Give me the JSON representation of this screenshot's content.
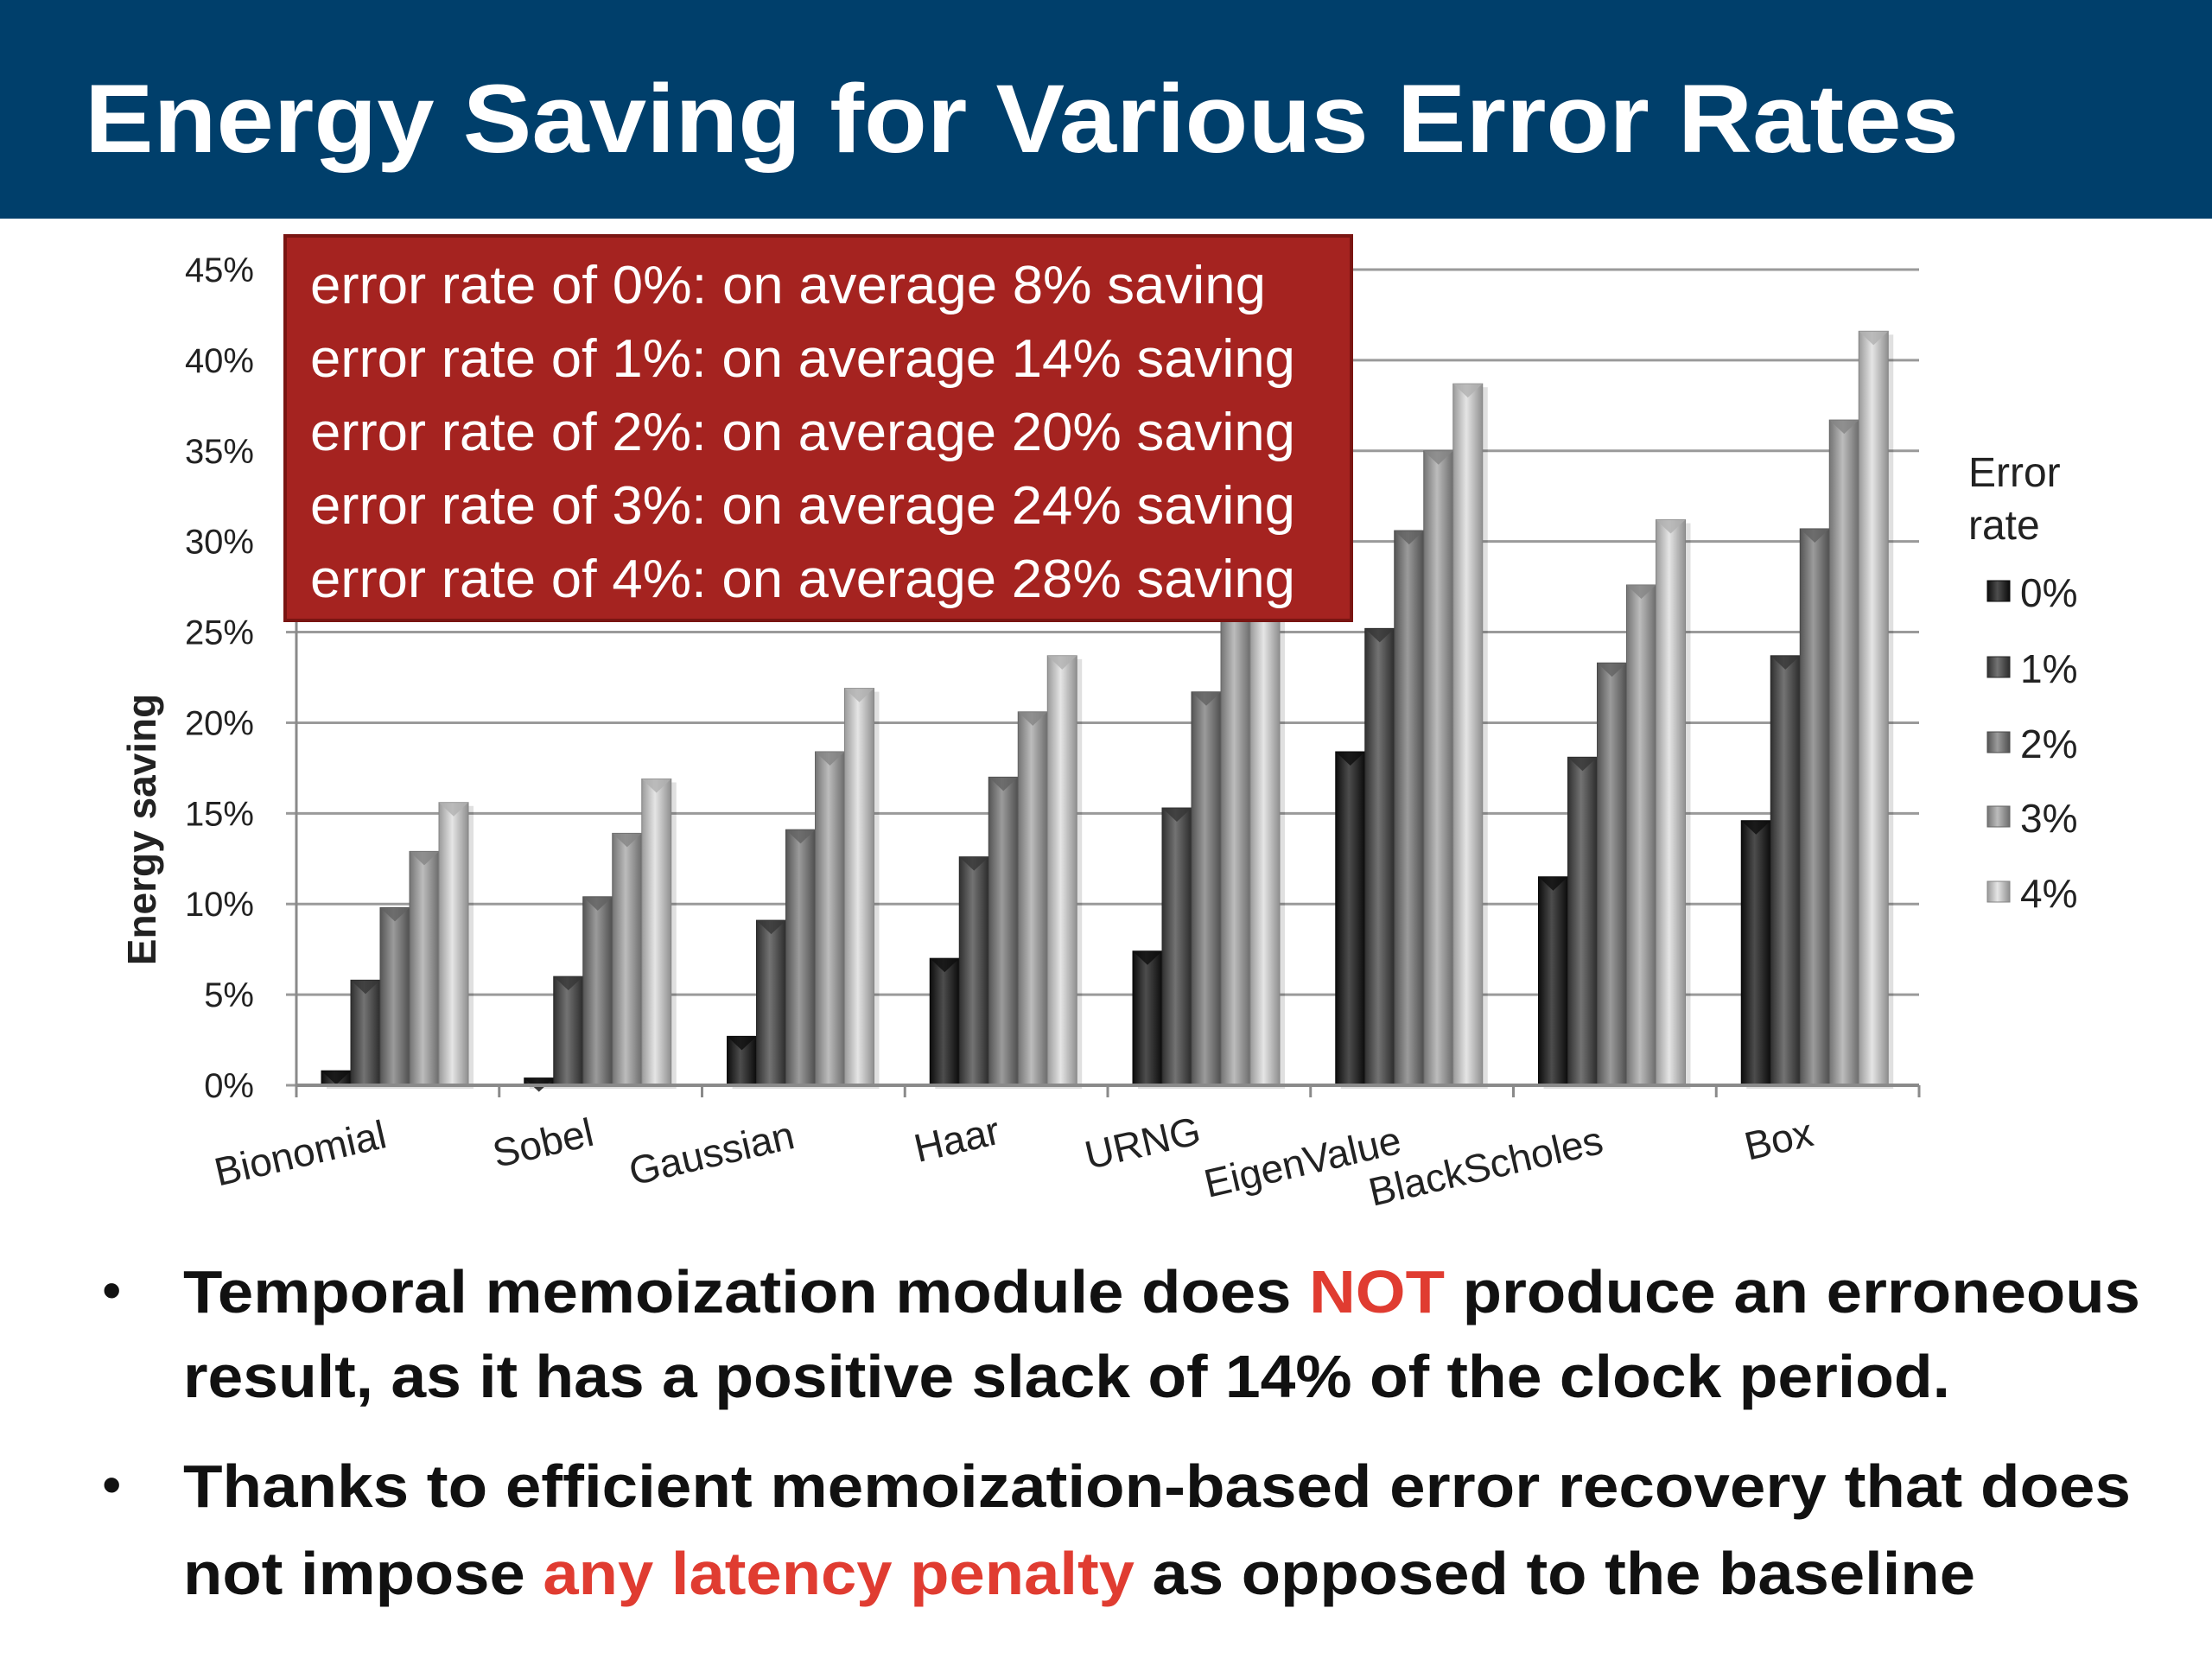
{
  "slide": {
    "title": "Energy Saving for Various Error Rates",
    "header_color": "#003f6b",
    "callout": {
      "background": "#a52320",
      "lines": [
        "error rate of 0%: on average 8% saving",
        "error rate of 1%: on average 14% saving",
        "error rate of 2%: on average 20% saving",
        "error rate of 3%: on average 24% saving",
        "error rate of 4%: on average 28% saving"
      ]
    },
    "bullets": [
      {
        "lines": [
          [
            {
              "text": "Temporal memoization module does ",
              "highlight": false
            },
            {
              "text": "NOT",
              "highlight": true
            },
            {
              "text": " produce an erroneous",
              "highlight": false
            }
          ],
          [
            {
              "text": "result, as it has a positive slack of 14% of the clock period.",
              "highlight": false
            }
          ]
        ]
      },
      {
        "lines": [
          [
            {
              "text": "Thanks to efficient memoization-based error recovery that does",
              "highlight": false
            }
          ],
          [
            {
              "text": "not impose ",
              "highlight": false
            },
            {
              "text": "any latency penalty",
              "highlight": true
            },
            {
              "text": " as opposed to the baseline",
              "highlight": false
            }
          ]
        ]
      }
    ],
    "bullet_symbol": "•",
    "highlight_color": "#e03c31"
  },
  "chart_data": {
    "type": "bar",
    "ylabel": "Energy saving",
    "xlabel": "",
    "ylim": [
      0,
      45
    ],
    "yticks": [
      "0%",
      "5%",
      "10%",
      "15%",
      "20%",
      "25%",
      "30%",
      "35%",
      "40%",
      "45%"
    ],
    "grid": true,
    "legend_title": "Error rate",
    "legend_placement": "right",
    "categories": [
      "Bionomial",
      "Sobel",
      "Gaussian",
      "Haar",
      "URNG",
      "EigenValue",
      "BlackScholes",
      "Box"
    ],
    "series": [
      {
        "name": "0%",
        "color": "#111111",
        "values": [
          0.8,
          0.4,
          2.7,
          7.0,
          7.4,
          18.4,
          11.5,
          14.6
        ]
      },
      {
        "name": "1%",
        "color": "#444444",
        "values": [
          5.8,
          6.0,
          9.1,
          12.6,
          15.3,
          25.2,
          18.1,
          23.7
        ]
      },
      {
        "name": "2%",
        "color": "#7a7a7a",
        "values": [
          9.8,
          10.4,
          14.1,
          17.0,
          21.7,
          30.6,
          23.3,
          30.7
        ]
      },
      {
        "name": "3%",
        "color": "#a6a6a6",
        "values": [
          12.9,
          13.9,
          18.4,
          20.6,
          27.0,
          35.0,
          27.6,
          36.7
        ]
      },
      {
        "name": "4%",
        "color": "#dcdcdc",
        "values": [
          15.6,
          16.9,
          21.9,
          23.7,
          28.0,
          38.7,
          31.2,
          41.6
        ]
      }
    ]
  }
}
